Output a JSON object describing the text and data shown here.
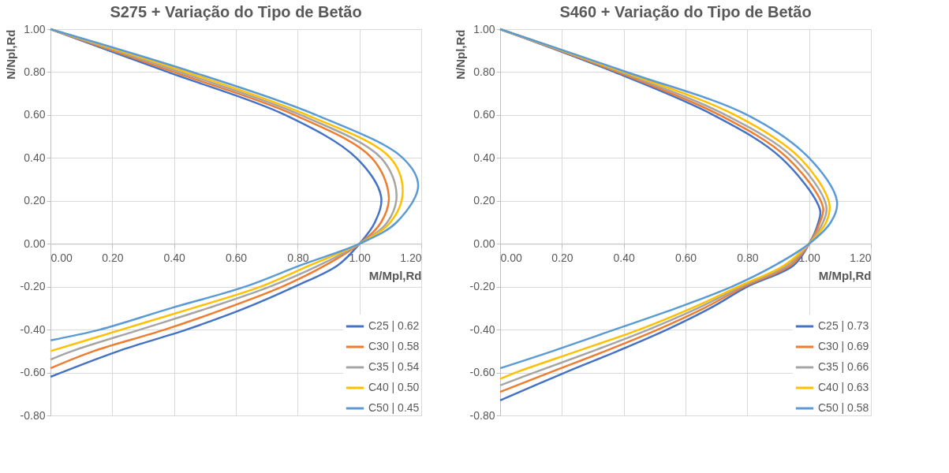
{
  "chart_data": [
    {
      "type": "line",
      "title": "S275 + Variação do Tipo de Betão",
      "xlabel": "M/Mpl,Rd",
      "ylabel": "N/Npl,Rd",
      "xlim": [
        0,
        1.2
      ],
      "ylim": [
        -0.8,
        1.0
      ],
      "xticks": [
        {
          "value": 0,
          "label": "0.00"
        },
        {
          "value": 0.2,
          "label": "0.20"
        },
        {
          "value": 0.4,
          "label": "0.40"
        },
        {
          "value": 0.6,
          "label": "0.60"
        },
        {
          "value": 0.8,
          "label": "0.80"
        },
        {
          "value": 1,
          "label": "1.00"
        },
        {
          "value": 1.2,
          "label": "1.20"
        }
      ],
      "yticks": [
        {
          "value": -0.8,
          "label": "-0.80"
        },
        {
          "value": -0.6,
          "label": "-0.60"
        },
        {
          "value": -0.4,
          "label": "-0.40"
        },
        {
          "value": -0.2,
          "label": "-0.20"
        },
        {
          "value": 0,
          "label": "0.00"
        },
        {
          "value": 0.2,
          "label": "0.20"
        },
        {
          "value": 0.4,
          "label": "0.40"
        },
        {
          "value": 0.6,
          "label": "0.60"
        },
        {
          "value": 0.8,
          "label": "0.80"
        },
        {
          "value": 1,
          "label": "1.00"
        }
      ],
      "grid": true,
      "legend": "bottom right",
      "marker": "none",
      "line_style": "solid",
      "series": [
        {
          "name": "C25 | 0.62",
          "color": "#4472c4",
          "x": [
            0,
            0.38,
            0.76,
            0.99,
            1.07,
            1.05,
            1,
            0.93,
            0.79,
            0.63,
            0.44,
            0.22,
            0
          ],
          "values": [
            1,
            0.8,
            0.6,
            0.4,
            0.22,
            0.1,
            0,
            -0.1,
            -0.2,
            -0.3,
            -0.4,
            -0.5,
            -0.62
          ]
        },
        {
          "name": "C30 | 0.58",
          "color": "#ed7d31",
          "x": [
            0,
            0.4,
            0.79,
            1.04,
            1.095,
            1.07,
            1,
            0.89,
            0.75,
            0.57,
            0.37,
            0.14,
            0
          ],
          "values": [
            1,
            0.8,
            0.6,
            0.4,
            0.22,
            0.1,
            0,
            -0.1,
            -0.2,
            -0.3,
            -0.4,
            -0.5,
            -0.58
          ]
        },
        {
          "name": "C35 | 0.54",
          "color": "#a5a5a5",
          "x": [
            0,
            0.42,
            0.81,
            1.07,
            1.12,
            1.09,
            1,
            0.87,
            0.71,
            0.51,
            0.29,
            0.07,
            0
          ],
          "values": [
            1,
            0.8,
            0.6,
            0.4,
            0.23,
            0.1,
            0,
            -0.1,
            -0.2,
            -0.3,
            -0.4,
            -0.5,
            -0.54
          ]
        },
        {
          "name": "C40 | 0.50",
          "color": "#ffc000",
          "x": [
            0,
            0.44,
            0.83,
            1.1,
            1.14,
            1.1,
            1,
            0.84,
            0.68,
            0.46,
            0.23,
            0
          ],
          "values": [
            1,
            0.8,
            0.6,
            0.4,
            0.24,
            0.1,
            0,
            -0.1,
            -0.2,
            -0.3,
            -0.4,
            -0.5
          ]
        },
        {
          "name": "C50 | 0.45",
          "color": "#5b9bd5",
          "x": [
            0,
            0.46,
            0.86,
            1.14,
            1.19,
            1.12,
            1,
            0.81,
            0.63,
            0.39,
            0.16,
            0
          ],
          "values": [
            1,
            0.8,
            0.6,
            0.4,
            0.27,
            0.1,
            0,
            -0.1,
            -0.2,
            -0.3,
            -0.4,
            -0.45
          ]
        }
      ]
    },
    {
      "type": "line",
      "title": "S460 + Variação do Tipo de Betão",
      "xlabel": "M/Mpl,Rd",
      "ylabel": "N/Npl,Rd",
      "xlim": [
        0,
        1.2
      ],
      "ylim": [
        -0.8,
        1.0
      ],
      "xticks": [
        {
          "value": 0,
          "label": "0.00"
        },
        {
          "value": 0.2,
          "label": "0.20"
        },
        {
          "value": 0.4,
          "label": "0.40"
        },
        {
          "value": 0.6,
          "label": "0.60"
        },
        {
          "value": 0.8,
          "label": "0.80"
        },
        {
          "value": 1,
          "label": "1.00"
        },
        {
          "value": 1.2,
          "label": "1.20"
        }
      ],
      "yticks": [
        {
          "value": -0.8,
          "label": "-0.80"
        },
        {
          "value": -0.6,
          "label": "-0.60"
        },
        {
          "value": -0.4,
          "label": "-0.40"
        },
        {
          "value": -0.2,
          "label": "-0.20"
        },
        {
          "value": 0,
          "label": "0.00"
        },
        {
          "value": 0.2,
          "label": "0.20"
        },
        {
          "value": 0.4,
          "label": "0.40"
        },
        {
          "value": 0.6,
          "label": "0.60"
        },
        {
          "value": 0.8,
          "label": "0.80"
        },
        {
          "value": 1,
          "label": "1.00"
        }
      ],
      "grid": true,
      "legend": "bottom right",
      "marker": "none",
      "line_style": "solid",
      "series": [
        {
          "name": "C25 | 0.73",
          "color": "#4472c4",
          "x": [
            0,
            0.37,
            0.69,
            0.91,
            1.035,
            1.03,
            1,
            0.95,
            0.8,
            0.68,
            0.54,
            0.38,
            0.21,
            0
          ],
          "values": [
            1,
            0.8,
            0.6,
            0.4,
            0.16,
            0.1,
            0,
            -0.1,
            -0.2,
            -0.3,
            -0.4,
            -0.5,
            -0.6,
            -0.73
          ]
        },
        {
          "name": "C30 | 0.69",
          "color": "#ed7d31",
          "x": [
            0,
            0.38,
            0.71,
            0.93,
            1.045,
            1.035,
            1,
            0.94,
            0.79,
            0.66,
            0.51,
            0.34,
            0.16,
            0
          ],
          "values": [
            1,
            0.8,
            0.6,
            0.4,
            0.17,
            0.1,
            0,
            -0.1,
            -0.2,
            -0.3,
            -0.4,
            -0.5,
            -0.6,
            -0.69
          ]
        },
        {
          "name": "C35 | 0.66",
          "color": "#a5a5a5",
          "x": [
            0,
            0.39,
            0.73,
            0.95,
            1.055,
            1.045,
            1,
            0.93,
            0.78,
            0.64,
            0.48,
            0.3,
            0.11,
            0
          ],
          "values": [
            1,
            0.8,
            0.6,
            0.4,
            0.18,
            0.1,
            0,
            -0.1,
            -0.2,
            -0.3,
            -0.4,
            -0.5,
            -0.6,
            -0.66
          ]
        },
        {
          "name": "C40 | 0.63",
          "color": "#ffc000",
          "x": [
            0,
            0.4,
            0.76,
            0.97,
            1.065,
            1.055,
            1,
            0.92,
            0.77,
            0.62,
            0.45,
            0.25,
            0.05,
            0
          ],
          "values": [
            1,
            0.8,
            0.6,
            0.4,
            0.19,
            0.1,
            0,
            -0.1,
            -0.2,
            -0.3,
            -0.4,
            -0.5,
            -0.6,
            -0.63
          ]
        },
        {
          "name": "C50 | 0.58",
          "color": "#5b9bd5",
          "x": [
            0,
            0.41,
            0.8,
            1,
            1.09,
            1.07,
            1,
            0.89,
            0.75,
            0.57,
            0.37,
            0.17,
            0
          ],
          "values": [
            1,
            0.8,
            0.6,
            0.4,
            0.2,
            0.1,
            0,
            -0.1,
            -0.2,
            -0.3,
            -0.4,
            -0.5,
            -0.58
          ]
        }
      ]
    }
  ]
}
